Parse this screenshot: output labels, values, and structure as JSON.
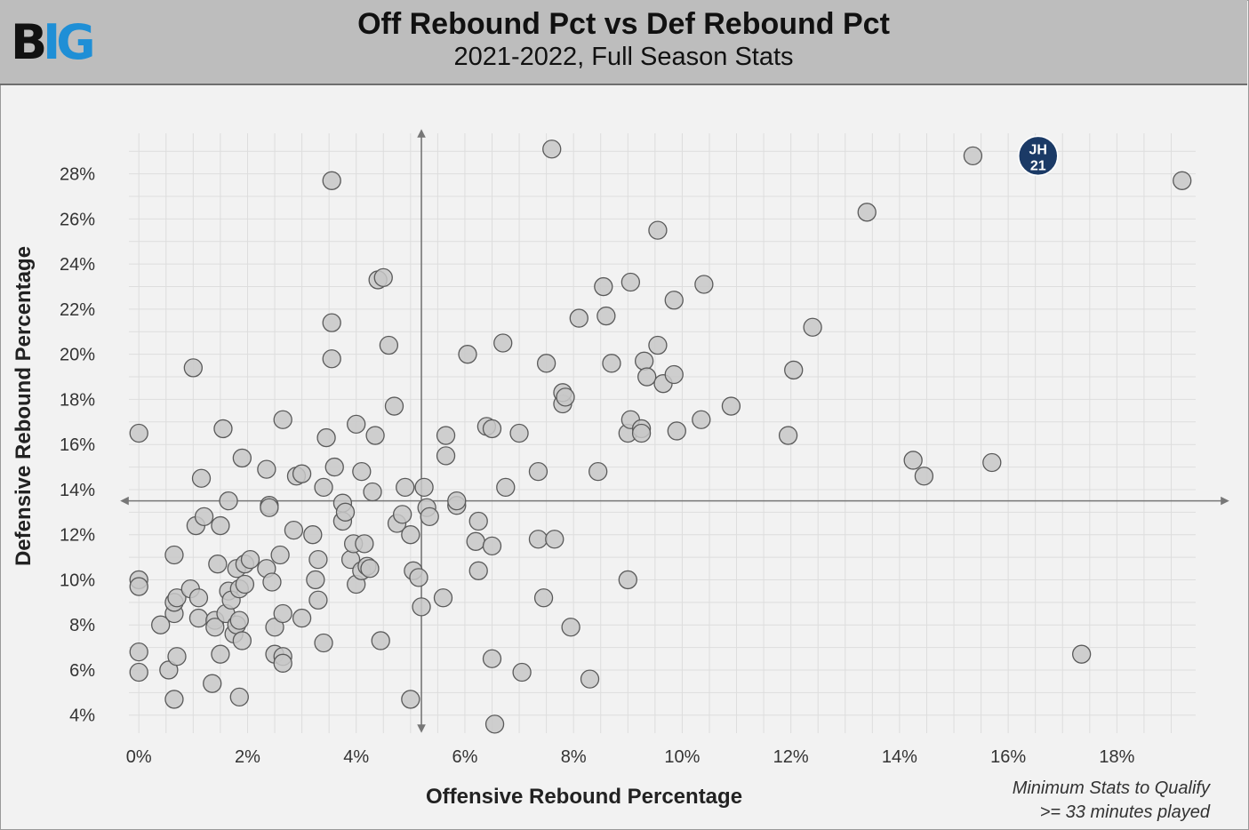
{
  "header": {
    "logo_left": "B",
    "logo_right": "IG",
    "title": "Off Rebound Pct vs Def Rebound Pct",
    "subtitle": "2021-2022, Full Season Stats"
  },
  "footnote": {
    "line1": "Minimum Stats to Qualify",
    "line2": ">= 33 minutes played"
  },
  "colors": {
    "point_fill": "#c8c8c8",
    "point_stroke": "#5a5a5a",
    "highlight_fill": "#1b3a66",
    "grid": "#dddddd",
    "avg_line": "#777777"
  },
  "chart_data": {
    "type": "scatter",
    "xlabel": "Offensive Rebound Percentage",
    "ylabel": "Defensive Rebound Percentage",
    "xlim": [
      -0.02,
      19.45
    ],
    "ylim": [
      3.2,
      29.8
    ],
    "x_ticks": [
      0,
      2,
      4,
      6,
      8,
      10,
      12,
      14,
      16,
      18
    ],
    "x_tick_labels": [
      "0%",
      "2%",
      "4%",
      "6%",
      "8%",
      "10%",
      "12%",
      "14%",
      "16%",
      "18%"
    ],
    "y_ticks": [
      4,
      6,
      8,
      10,
      12,
      14,
      16,
      18,
      20,
      22,
      24,
      26,
      28
    ],
    "y_tick_labels": [
      "4%",
      "6%",
      "8%",
      "10%",
      "12%",
      "14%",
      "16%",
      "18%",
      "20%",
      "22%",
      "24%",
      "26%",
      "28%"
    ],
    "grid": true,
    "average_lines": {
      "x": 5.2,
      "y": 13.5
    },
    "highlight": {
      "label_line1": "JH",
      "label_line2": "21",
      "x": 16.55,
      "y": 28.8
    },
    "points": [
      [
        0,
        16.5
      ],
      [
        0,
        10
      ],
      [
        0,
        9.7
      ],
      [
        0,
        6.8
      ],
      [
        0,
        5.9
      ],
      [
        0.4,
        8
      ],
      [
        0.55,
        6
      ],
      [
        0.65,
        4.7
      ],
      [
        0.65,
        8.5
      ],
      [
        0.65,
        9
      ],
      [
        0.65,
        11.1
      ],
      [
        0.7,
        9.2
      ],
      [
        0.7,
        6.6
      ],
      [
        0.95,
        9.6
      ],
      [
        1.0,
        19.4
      ],
      [
        1.05,
        12.4
      ],
      [
        1.1,
        8.3
      ],
      [
        1.1,
        9.2
      ],
      [
        1.15,
        14.5
      ],
      [
        1.2,
        12.8
      ],
      [
        1.35,
        5.4
      ],
      [
        1.4,
        8.2
      ],
      [
        1.4,
        7.9
      ],
      [
        1.45,
        10.7
      ],
      [
        1.5,
        6.7
      ],
      [
        1.5,
        12.4
      ],
      [
        1.55,
        16.7
      ],
      [
        1.6,
        8.5
      ],
      [
        1.65,
        9.5
      ],
      [
        1.65,
        13.5
      ],
      [
        1.7,
        9.1
      ],
      [
        1.75,
        7.6
      ],
      [
        1.8,
        8
      ],
      [
        1.85,
        8.2
      ],
      [
        1.8,
        10.5
      ],
      [
        1.85,
        9.6
      ],
      [
        1.85,
        4.8
      ],
      [
        1.9,
        7.3
      ],
      [
        1.9,
        15.4
      ],
      [
        1.95,
        10.7
      ],
      [
        1.95,
        9.8
      ],
      [
        2.05,
        10.9
      ],
      [
        2.35,
        10.5
      ],
      [
        2.35,
        14.9
      ],
      [
        2.4,
        13.3
      ],
      [
        2.4,
        13.2
      ],
      [
        2.45,
        9.9
      ],
      [
        2.5,
        6.7
      ],
      [
        2.5,
        7.9
      ],
      [
        2.6,
        11.1
      ],
      [
        2.65,
        6.6
      ],
      [
        2.65,
        6.3
      ],
      [
        2.65,
        17.1
      ],
      [
        2.65,
        8.5
      ],
      [
        2.85,
        12.2
      ],
      [
        2.9,
        14.6
      ],
      [
        3.0,
        14.7
      ],
      [
        3.0,
        8.3
      ],
      [
        3.2,
        12
      ],
      [
        3.25,
        10
      ],
      [
        3.3,
        10.9
      ],
      [
        3.3,
        9.1
      ],
      [
        3.4,
        7.2
      ],
      [
        3.4,
        14.1
      ],
      [
        3.45,
        16.3
      ],
      [
        3.55,
        27.7
      ],
      [
        3.55,
        21.4
      ],
      [
        3.55,
        19.8
      ],
      [
        3.6,
        15
      ],
      [
        3.75,
        12.6
      ],
      [
        3.75,
        13.4
      ],
      [
        3.8,
        13
      ],
      [
        3.9,
        10.9
      ],
      [
        3.95,
        11.6
      ],
      [
        4.0,
        9.8
      ],
      [
        4.0,
        16.9
      ],
      [
        4.1,
        14.8
      ],
      [
        4.1,
        10.4
      ],
      [
        4.15,
        11.6
      ],
      [
        4.2,
        10.6
      ],
      [
        4.25,
        10.5
      ],
      [
        4.3,
        13.9
      ],
      [
        4.35,
        16.4
      ],
      [
        4.4,
        23.3
      ],
      [
        4.45,
        7.3
      ],
      [
        4.5,
        23.4
      ],
      [
        4.6,
        20.4
      ],
      [
        4.7,
        17.7
      ],
      [
        4.75,
        12.5
      ],
      [
        4.85,
        12.9
      ],
      [
        4.9,
        14.1
      ],
      [
        5.0,
        12
      ],
      [
        5.0,
        4.7
      ],
      [
        5.05,
        10.4
      ],
      [
        5.15,
        10.1
      ],
      [
        5.2,
        8.8
      ],
      [
        5.25,
        14.1
      ],
      [
        5.3,
        13.2
      ],
      [
        5.35,
        12.8
      ],
      [
        5.6,
        9.2
      ],
      [
        5.65,
        16.4
      ],
      [
        5.65,
        15.5
      ],
      [
        5.85,
        13.3
      ],
      [
        5.85,
        13.5
      ],
      [
        6.05,
        20
      ],
      [
        6.2,
        11.7
      ],
      [
        6.25,
        12.6
      ],
      [
        6.25,
        10.4
      ],
      [
        6.4,
        16.8
      ],
      [
        6.5,
        16.7
      ],
      [
        6.5,
        11.5
      ],
      [
        6.5,
        6.5
      ],
      [
        6.55,
        3.6
      ],
      [
        6.7,
        20.5
      ],
      [
        6.75,
        14.1
      ],
      [
        7.0,
        16.5
      ],
      [
        7.05,
        5.9
      ],
      [
        7.35,
        14.8
      ],
      [
        7.35,
        11.8
      ],
      [
        7.45,
        9.2
      ],
      [
        7.5,
        19.6
      ],
      [
        7.6,
        29.1
      ],
      [
        7.65,
        11.8
      ],
      [
        7.8,
        17.8
      ],
      [
        7.8,
        18.3
      ],
      [
        7.85,
        18.1
      ],
      [
        7.95,
        7.9
      ],
      [
        8.1,
        21.6
      ],
      [
        8.3,
        5.6
      ],
      [
        8.45,
        14.8
      ],
      [
        8.55,
        23
      ],
      [
        8.6,
        21.7
      ],
      [
        8.7,
        19.6
      ],
      [
        9.0,
        10
      ],
      [
        9.0,
        16.5
      ],
      [
        9.05,
        23.2
      ],
      [
        9.05,
        17.1
      ],
      [
        9.25,
        16.7
      ],
      [
        9.25,
        16.5
      ],
      [
        9.3,
        19.7
      ],
      [
        9.35,
        19
      ],
      [
        9.55,
        20.4
      ],
      [
        9.55,
        25.5
      ],
      [
        9.65,
        18.7
      ],
      [
        9.85,
        22.4
      ],
      [
        9.85,
        19.1
      ],
      [
        9.9,
        16.6
      ],
      [
        10.35,
        17.1
      ],
      [
        10.4,
        23.1
      ],
      [
        10.9,
        17.7
      ],
      [
        11.95,
        16.4
      ],
      [
        12.05,
        19.3
      ],
      [
        12.4,
        21.2
      ],
      [
        13.4,
        26.3
      ],
      [
        14.25,
        15.3
      ],
      [
        14.45,
        14.6
      ],
      [
        15.35,
        28.8
      ],
      [
        15.7,
        15.2
      ],
      [
        17.35,
        6.7
      ],
      [
        19.2,
        27.7
      ]
    ]
  }
}
